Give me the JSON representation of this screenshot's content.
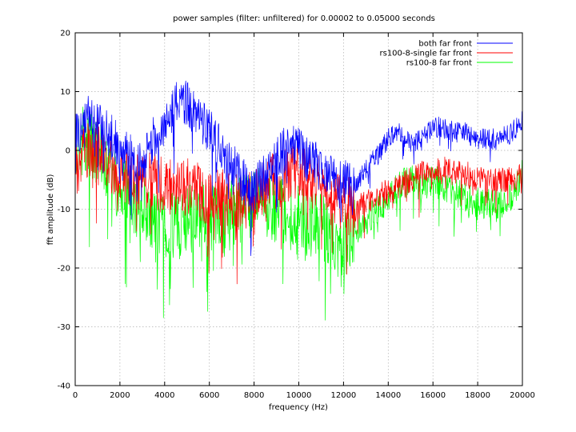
{
  "chart_data": {
    "type": "line",
    "title": "power samples (filter: unfiltered) for 0.00002 to 0.05000 seconds",
    "xlabel": "frequency (Hz)",
    "ylabel": "fft amplitude (dB)",
    "xlim": [
      0,
      20000
    ],
    "ylim": [
      -40,
      20
    ],
    "xticks": [
      0,
      2000,
      4000,
      6000,
      8000,
      10000,
      12000,
      14000,
      16000,
      18000,
      20000
    ],
    "yticks": [
      -40,
      -30,
      -20,
      -10,
      0,
      10,
      20
    ],
    "grid": true,
    "legend_position": "top-right",
    "series": [
      {
        "name": "both far front",
        "color": "#0000ff",
        "noise": 4,
        "x": [
          0,
          500,
          1000,
          1500,
          2000,
          2500,
          3000,
          3500,
          4000,
          4500,
          5000,
          5500,
          6000,
          6500,
          7000,
          7500,
          8000,
          8500,
          9000,
          9500,
          10000,
          10500,
          11000,
          11500,
          12000,
          12500,
          13000,
          13500,
          14000,
          14500,
          15000,
          15500,
          16000,
          16500,
          17000,
          17500,
          18000,
          18500,
          19000,
          19500,
          20000
        ],
        "y": [
          2,
          6,
          4,
          3,
          0,
          -1,
          -2,
          2,
          5,
          8,
          8,
          6,
          3,
          1,
          -2,
          -5,
          -7,
          -4,
          -2,
          1,
          0,
          -2,
          -3,
          -4,
          -5,
          -6,
          -3,
          -1,
          2,
          3,
          1,
          2,
          4,
          4,
          3,
          3,
          2,
          2,
          2,
          3,
          5
        ]
      },
      {
        "name": "rs100-8-single far front",
        "color": "#ff0000",
        "noise": 5,
        "x": [
          0,
          500,
          1000,
          1500,
          2000,
          2500,
          3000,
          3500,
          4000,
          4500,
          5000,
          5500,
          6000,
          6500,
          7000,
          7500,
          8000,
          8500,
          9000,
          9500,
          10000,
          10500,
          11000,
          11500,
          12000,
          12500,
          13000,
          13500,
          14000,
          14500,
          15000,
          15500,
          16000,
          16500,
          17000,
          17500,
          18000,
          18500,
          19000,
          19500,
          20000
        ],
        "y": [
          -3,
          0,
          1,
          -2,
          -4,
          -5,
          -6,
          -5,
          -6,
          -7,
          -6,
          -7,
          -8,
          -8,
          -9,
          -9,
          -8,
          -6,
          -5,
          -4,
          -3,
          -5,
          -6,
          -8,
          -9,
          -10,
          -9,
          -8,
          -7,
          -6,
          -5,
          -4,
          -4,
          -3,
          -4,
          -4,
          -5,
          -5,
          -5,
          -5,
          -4
        ]
      },
      {
        "name": "rs100-8 far front",
        "color": "#00ff00",
        "noise": 6,
        "x": [
          0,
          500,
          1000,
          1500,
          2000,
          2500,
          3000,
          3500,
          4000,
          4500,
          5000,
          5500,
          6000,
          6500,
          7000,
          7500,
          8000,
          8500,
          9000,
          9500,
          10000,
          10500,
          11000,
          11500,
          12000,
          12500,
          13000,
          13500,
          14000,
          14500,
          15000,
          15500,
          16000,
          16500,
          17000,
          17500,
          18000,
          18500,
          19000,
          19500,
          20000
        ],
        "y": [
          1,
          2,
          0,
          -4,
          -6,
          -8,
          -10,
          -12,
          -13,
          -13,
          -12,
          -11,
          -11,
          -12,
          -11,
          -10,
          -9,
          -9,
          -10,
          -11,
          -12,
          -12,
          -13,
          -14,
          -16,
          -14,
          -12,
          -10,
          -8,
          -6,
          -5,
          -6,
          -5,
          -6,
          -7,
          -8,
          -9,
          -9,
          -9,
          -8,
          -4
        ]
      }
    ]
  }
}
